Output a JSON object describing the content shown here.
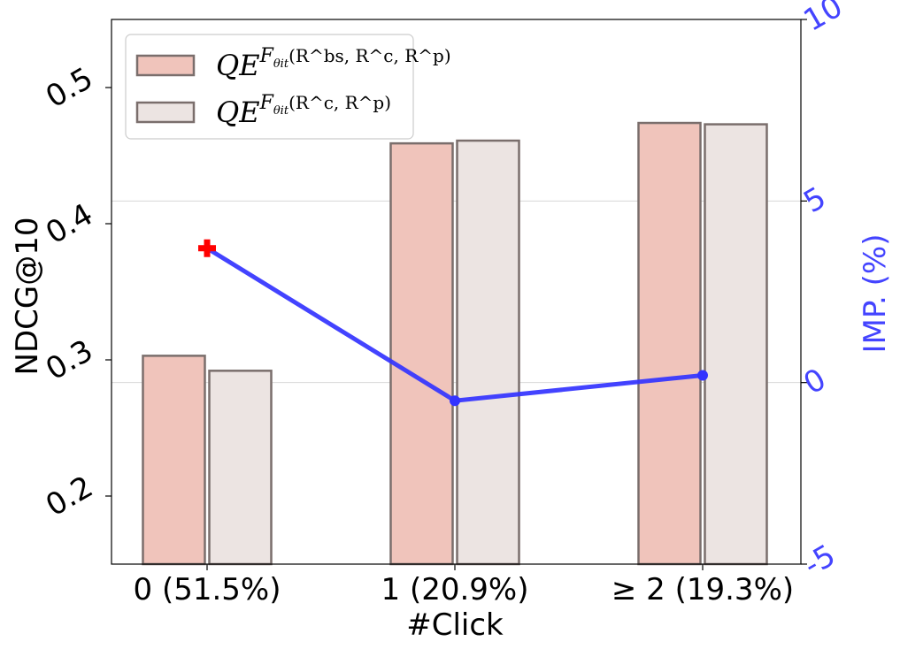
{
  "chart_data": {
    "type": "bar",
    "categories": [
      "0 (51.5%)",
      "1 (20.9%)",
      "≥ 2 (19.3%)"
    ],
    "xlabel": "#Click",
    "ylabel": "NDCG@10",
    "ylabel_right": "IMP. (%)",
    "ylim": [
      0.15,
      0.55
    ],
    "ylim_right": [
      -5,
      10
    ],
    "yticks": [
      "0.2",
      "0.3",
      "0.4",
      "0.5"
    ],
    "yticks_right": [
      "-5",
      "0",
      "5",
      "10"
    ],
    "grid_y_right": [
      0,
      5
    ],
    "legend_position": "top-left",
    "series": [
      {
        "name": "QE^{F_θit(R^bs, R^c, R^p)}",
        "legend_base": "QE",
        "legend_sup": "F",
        "legend_sub": "θit",
        "legend_args": "(R^bs, R^c, R^p)",
        "values": [
          0.303,
          0.459,
          0.474
        ],
        "color": "#f0c4bb"
      },
      {
        "name": "QE^{F_θit(R^c, R^p)}",
        "legend_base": "QE",
        "legend_sup": "F",
        "legend_sub": "θit",
        "legend_args": "(R^c, R^p)",
        "values": [
          0.292,
          0.461,
          0.473
        ],
        "color": "#ece4e2"
      }
    ],
    "improvement": {
      "axis": "right",
      "values": [
        3.7,
        -0.5,
        0.2
      ],
      "color": "#3333ff",
      "first_marker": "plus",
      "first_marker_color": "#ff0000"
    }
  }
}
